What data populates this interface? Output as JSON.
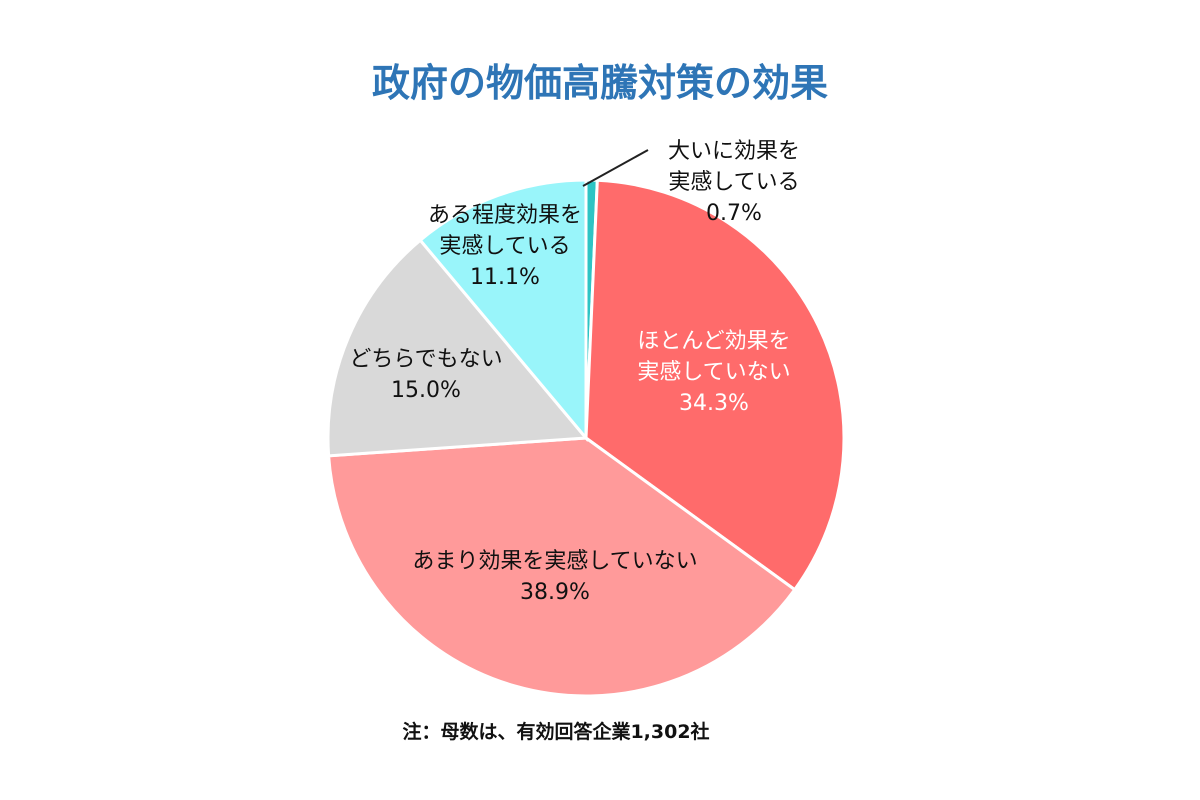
{
  "chart_data": {
    "type": "pie",
    "title": "政府の物価高騰対策の効果",
    "note": "注：母数は、有効回答企業1,302社",
    "slices": [
      {
        "label_lines": [
          "大いに効果を",
          "実感している"
        ],
        "value": 0.7,
        "value_label": "0.7%",
        "color": "#2ec4c4"
      },
      {
        "label_lines": [
          "ほとんど効果を",
          "実感していない"
        ],
        "value": 34.3,
        "value_label": "34.3%",
        "color": "#ff6b6b"
      },
      {
        "label_lines": [
          "あまり効果を実感していない"
        ],
        "value": 38.9,
        "value_label": "38.9%",
        "color": "#ff9a9a"
      },
      {
        "label_lines": [
          "どちらでもない"
        ],
        "value": 15.0,
        "value_label": "15.0%",
        "color": "#d9d9d9"
      },
      {
        "label_lines": [
          "ある程度効果を",
          "実感している"
        ],
        "value": 11.1,
        "value_label": "11.1%",
        "color": "#99f5fa"
      }
    ]
  }
}
